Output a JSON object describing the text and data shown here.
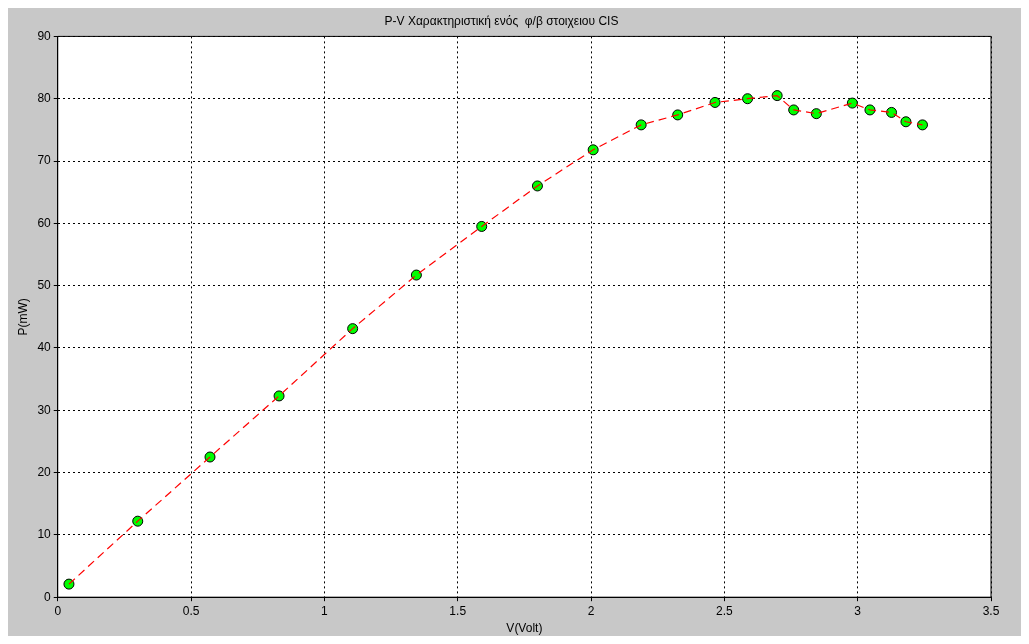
{
  "chart_data": {
    "type": "scatter",
    "title": "P-V Χαρακτηριστική ενός  φ/β στοιχειου CIS",
    "xlabel": "V(Volt)",
    "ylabel": "P(mW)",
    "x": [
      0.042,
      0.3,
      0.571,
      0.83,
      1.106,
      1.345,
      1.59,
      1.799,
      2.008,
      2.188,
      2.325,
      2.465,
      2.587,
      2.698,
      2.76,
      2.845,
      2.98,
      3.046,
      3.127,
      3.181,
      3.243
    ],
    "series": [
      {
        "type": "line",
        "color": "#ff0000",
        "line_style": "dashed",
        "marker": "none",
        "values": [
          2.1,
          12.2,
          22.5,
          32.3,
          43.1,
          51.7,
          59.5,
          66.0,
          71.8,
          75.8,
          77.4,
          79.4,
          80.0,
          80.5,
          78.2,
          77.6,
          79.3,
          78.2,
          77.8,
          76.3,
          75.8
        ]
      },
      {
        "type": "scatter",
        "color": "#00ff00",
        "marker": "circle",
        "values": [
          2.1,
          12.2,
          22.5,
          32.3,
          43.1,
          51.7,
          59.5,
          66.0,
          71.8,
          75.8,
          77.4,
          79.4,
          80.0,
          80.5,
          78.2,
          77.6,
          79.3,
          78.2,
          77.8,
          76.3,
          75.8
        ]
      }
    ],
    "xlim": [
      0,
      3.5
    ],
    "xticks": [
      0,
      0.5,
      1,
      1.5,
      2,
      2.5,
      3,
      3.5
    ],
    "ylim": [
      0,
      90
    ],
    "yticks": [
      0,
      10,
      20,
      30,
      40,
      50,
      60,
      70,
      80,
      90
    ],
    "grid": true,
    "legend": false
  }
}
